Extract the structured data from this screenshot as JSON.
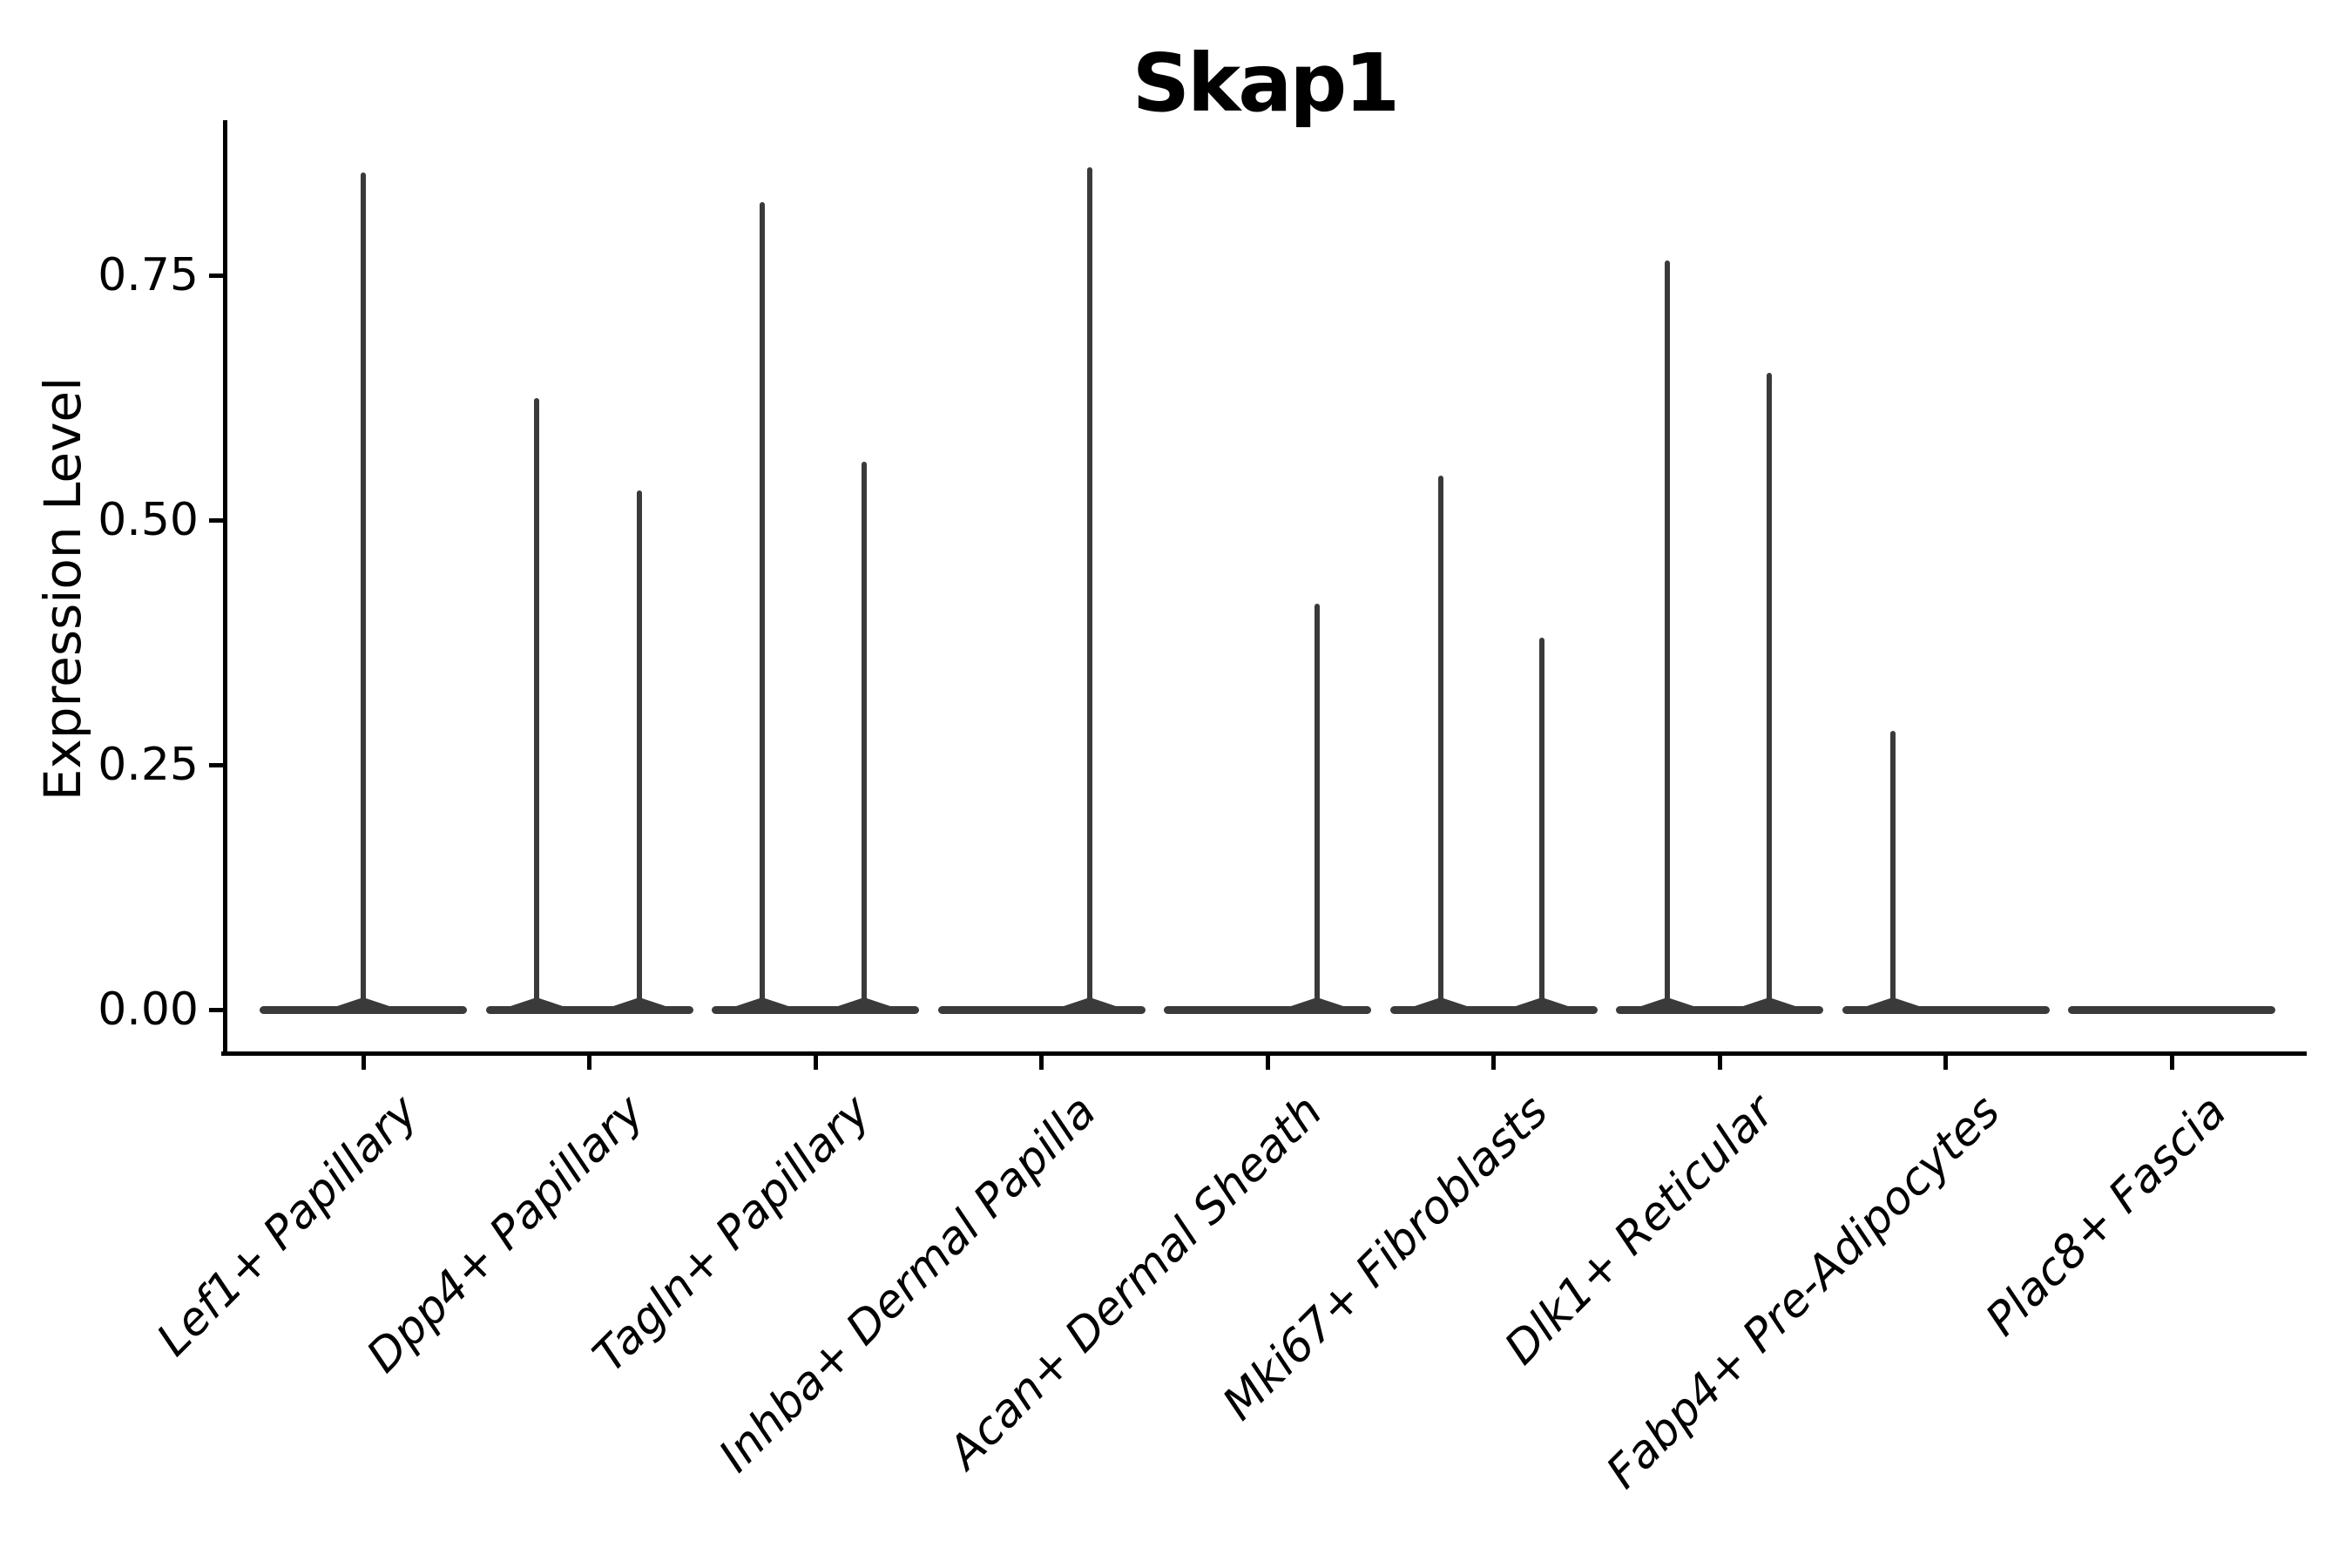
{
  "header": {
    "title": "Skap1"
  },
  "y_axis": {
    "label": "Expression Level",
    "tick_labels": [
      "0.00",
      "0.25",
      "0.50",
      "0.75"
    ]
  },
  "x_axis": {
    "categories": [
      "Lef1+ Papillary",
      "Dpp4+ Papillary",
      "Tagln+ Papillary",
      "Inhba+ Dermal Papilla",
      "Acan+ Dermal Sheath",
      "Mki67+ Fibroblasts",
      "Dlk1+ Reticular",
      "Fabp4+ Pre-Adipocytes",
      "Plac8+ Fascia"
    ]
  },
  "colors": {
    "violin": "#3A3A3A",
    "axis": "#000000",
    "text": "#000000",
    "background": "#FFFFFF"
  },
  "chart_data": {
    "type": "violin",
    "title": "Skap1",
    "xlabel": "",
    "ylabel": "Expression Level",
    "ylim": [
      0,
      0.91
    ],
    "y_ticks": [
      0.0,
      0.25,
      0.5,
      0.75
    ],
    "grid": false,
    "legend": null,
    "categories": [
      "Lef1+ Papillary",
      "Dpp4+ Papillary",
      "Tagln+ Papillary",
      "Inhba+ Dermal Papilla",
      "Acan+ Dermal Sheath",
      "Mki67+ Fibroblasts",
      "Dlk1+ Reticular",
      "Fabp4+ Pre-Adipocytes",
      "Plac8+ Fascia"
    ],
    "description": "Zero-inflated single-cell expression violins: each cluster shows a flat density bar at expression 0 plus thin vertical density spikes reaching the maximum expression of rare expressing cells.",
    "violins": [
      {
        "category": "Lef1+ Papillary",
        "zero_bar": true,
        "spikes": [
          {
            "offset_frac": 0.0,
            "max": 0.855
          }
        ]
      },
      {
        "category": "Dpp4+ Papillary",
        "zero_bar": true,
        "spikes": [
          {
            "offset_frac": -0.235,
            "max": 0.625
          },
          {
            "offset_frac": 0.22,
            "max": 0.53
          }
        ]
      },
      {
        "category": "Tagln+ Papillary",
        "zero_bar": true,
        "spikes": [
          {
            "offset_frac": -0.235,
            "max": 0.825
          },
          {
            "offset_frac": 0.215,
            "max": 0.56
          }
        ]
      },
      {
        "category": "Inhba+ Dermal Papilla",
        "zero_bar": true,
        "spikes": [
          {
            "offset_frac": 0.215,
            "max": 0.86
          }
        ]
      },
      {
        "category": "Acan+ Dermal Sheath",
        "zero_bar": true,
        "spikes": [
          {
            "offset_frac": 0.22,
            "max": 0.415
          }
        ]
      },
      {
        "category": "Mki67+ Fibroblasts",
        "zero_bar": true,
        "spikes": [
          {
            "offset_frac": -0.235,
            "max": 0.545
          },
          {
            "offset_frac": 0.215,
            "max": 0.38
          }
        ]
      },
      {
        "category": "Dlk1+ Reticular",
        "zero_bar": true,
        "spikes": [
          {
            "offset_frac": -0.23,
            "max": 0.765
          },
          {
            "offset_frac": 0.22,
            "max": 0.65
          }
        ]
      },
      {
        "category": "Fabp4+ Pre-Adipocytes",
        "zero_bar": true,
        "spikes": [
          {
            "offset_frac": -0.235,
            "max": 0.285
          }
        ]
      },
      {
        "category": "Plac8+ Fascia",
        "zero_bar": true,
        "spikes": []
      }
    ]
  }
}
